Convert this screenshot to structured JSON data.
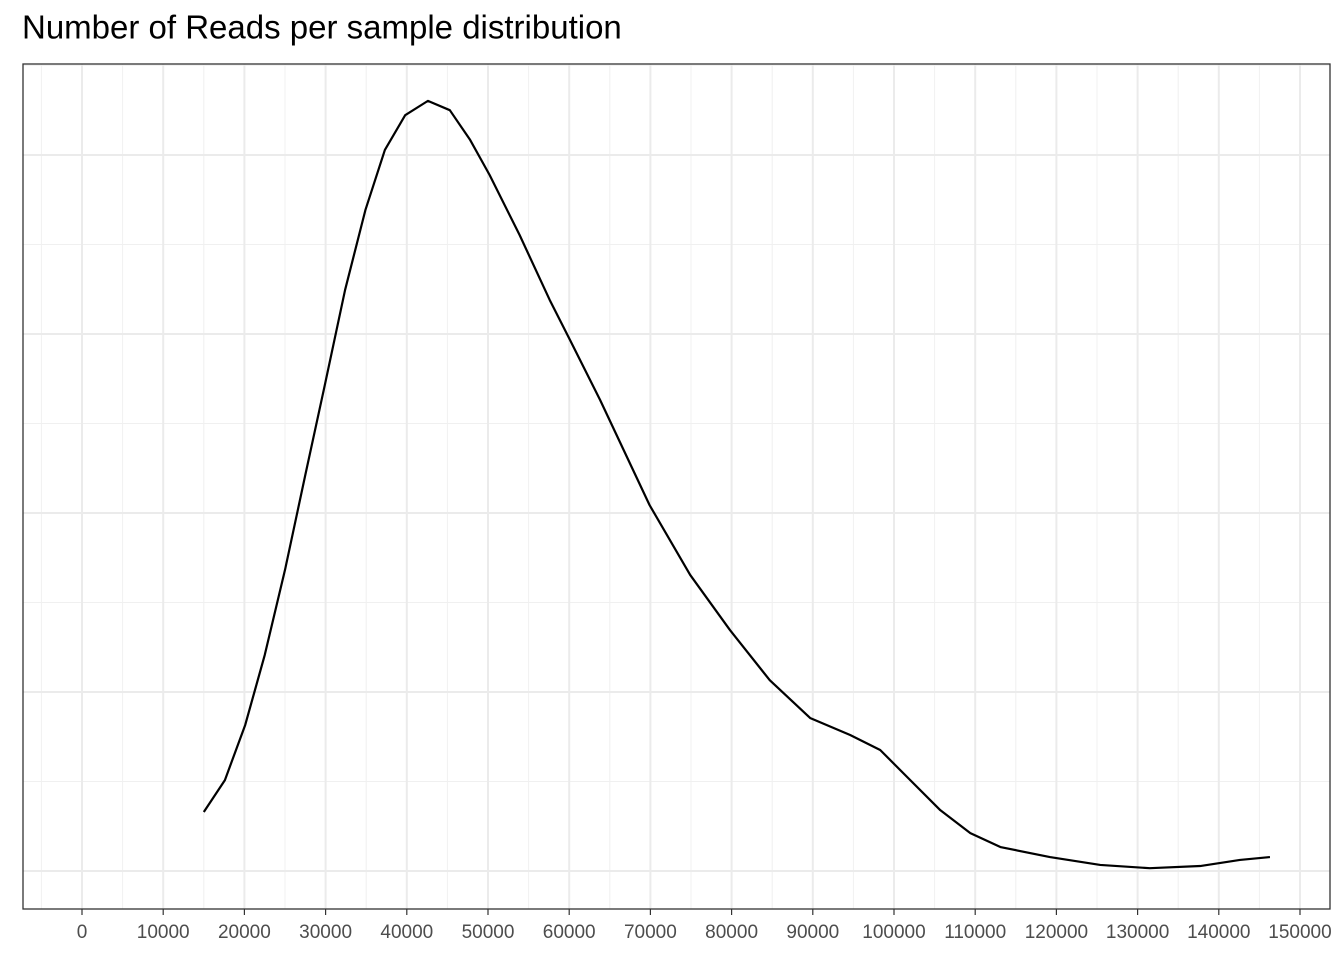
{
  "chart_data": {
    "type": "line",
    "title": "Number of Reads per sample distribution",
    "x": [
      15000,
      17600,
      20100,
      22500,
      25000,
      27500,
      29900,
      32400,
      34900,
      37300,
      39800,
      42600,
      45300,
      47800,
      50200,
      53900,
      57600,
      60100,
      63800,
      69900,
      74900,
      79800,
      84700,
      89700,
      94600,
      98300,
      102000,
      105700,
      109400,
      113100,
      119200,
      125400,
      131500,
      137700,
      142600,
      146300
    ],
    "series": [
      {
        "color": "#000000",
        "values": [
          1.65e-06,
          2.54e-06,
          4.08e-06,
          6.03e-06,
          8.41e-06,
          1.106e-05,
          1.357e-05,
          1.623e-05,
          1.846e-05,
          2.014e-05,
          2.111e-05,
          2.151e-05,
          2.125e-05,
          2.042e-05,
          1.944e-05,
          1.776e-05,
          1.595e-05,
          1.483e-05,
          1.316e-05,
          1.022e-05,
          8.27e-06,
          6.73e-06,
          5.33e-06,
          4.27e-06,
          3.8e-06,
          3.38e-06,
          2.54e-06,
          1.7e-06,
          1.06e-06,
          6.7e-07,
          3.9e-07,
          1.7e-07,
          8e-08,
          1.4e-07,
          3.1e-07,
          3.9e-07
        ]
      }
    ],
    "xlim": [
      -7266,
      153695
    ],
    "xticks": [
      0,
      10000,
      20000,
      30000,
      40000,
      50000,
      60000,
      70000,
      80000,
      90000,
      100000,
      110000,
      120000,
      130000,
      140000,
      150000
    ],
    "ylim": [
      -1.06e-06,
      2.254e-05
    ],
    "yticks": [
      0,
      5e-06,
      1e-05,
      1.5e-05,
      2e-05
    ],
    "grid": true
  }
}
